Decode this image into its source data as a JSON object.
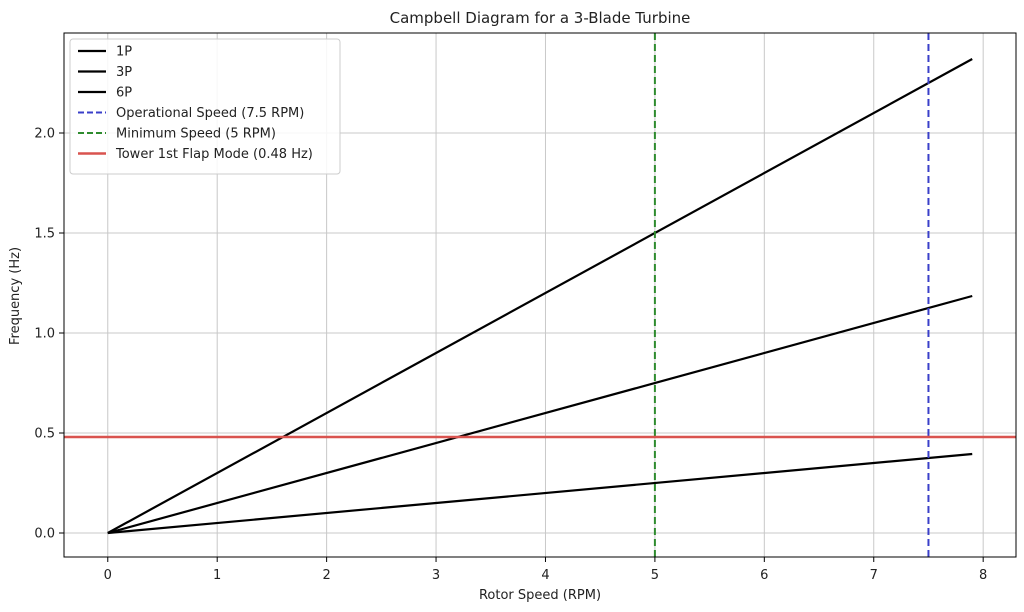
{
  "chart_data": {
    "type": "line",
    "title": "Campbell Diagram for a 3-Blade Turbine",
    "xlabel": "Rotor Speed (RPM)",
    "ylabel": "Frequency (Hz)",
    "xlim": [
      -0.4,
      8.3
    ],
    "ylim": [
      -0.12,
      2.5
    ],
    "xticks": [
      0,
      1,
      2,
      3,
      4,
      5,
      6,
      7,
      8
    ],
    "xtick_labels": [
      "0",
      "1",
      "2",
      "3",
      "4",
      "5",
      "6",
      "7",
      "8"
    ],
    "yticks": [
      0.0,
      0.5,
      1.0,
      1.5,
      2.0
    ],
    "ytick_labels": [
      "0.0",
      "0.5",
      "1.0",
      "1.5",
      "2.0"
    ],
    "grid": true,
    "legend_position": "top-left",
    "series": [
      {
        "name": "1P",
        "color": "#000000",
        "style": "solid",
        "x": [
          0,
          7.9
        ],
        "y": [
          0,
          0.395
        ]
      },
      {
        "name": "3P",
        "color": "#000000",
        "style": "solid",
        "x": [
          0,
          7.9
        ],
        "y": [
          0,
          1.185
        ]
      },
      {
        "name": "6P",
        "color": "#000000",
        "style": "solid",
        "x": [
          0,
          7.9
        ],
        "y": [
          0,
          2.37
        ]
      }
    ],
    "vlines": [
      {
        "name": "Operational Speed (7.5 RPM)",
        "x": 7.5,
        "color": "#3a3fc9",
        "style": "dashed"
      },
      {
        "name": "Minimum Speed (5 RPM)",
        "x": 5,
        "color": "#2e8b2e",
        "style": "dashed"
      }
    ],
    "hlines": [
      {
        "name": "Tower 1st Flap Mode (0.48 Hz)",
        "y": 0.48,
        "color": "#d9534f",
        "style": "solid"
      }
    ]
  }
}
